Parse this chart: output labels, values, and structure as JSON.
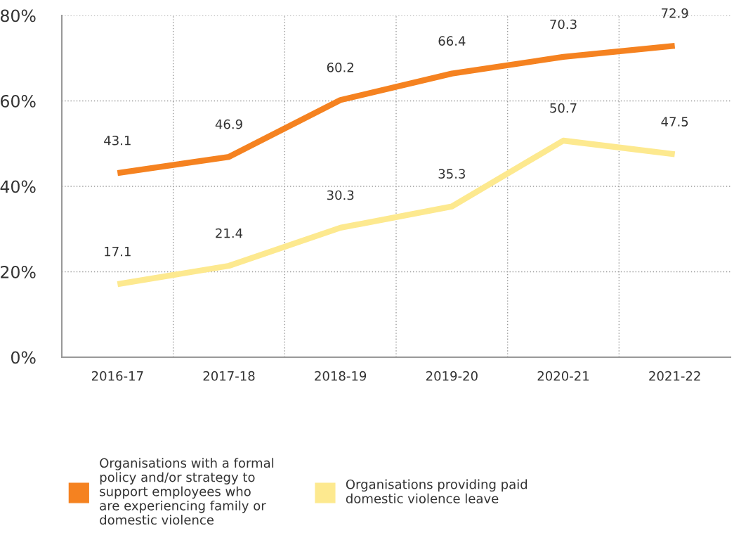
{
  "chart_data": {
    "type": "line",
    "categories": [
      "2016-17",
      "2017-18",
      "2018-19",
      "2019-20",
      "2020-21",
      "2021-22"
    ],
    "series": [
      {
        "name": "Organisations with a formal\npolicy and/or strategy to\nsupport employees who\nare experiencing family or\ndomestic violence",
        "color": "#f58220",
        "values": [
          43.1,
          46.9,
          60.2,
          66.4,
          70.3,
          72.9
        ]
      },
      {
        "name": "Organisations providing paid\ndomestic violence leave",
        "color": "#fde98f",
        "values": [
          17.1,
          21.4,
          30.3,
          35.3,
          50.7,
          47.5
        ]
      }
    ],
    "ylim": [
      0,
      80
    ],
    "yticks": [
      {
        "value": 0,
        "label": "0%"
      },
      {
        "value": 20,
        "label": "20%"
      },
      {
        "value": 40,
        "label": "40%"
      },
      {
        "value": 60,
        "label": "60%"
      },
      {
        "value": 80,
        "label": "80%"
      }
    ],
    "grid": true,
    "legend": "bottom left",
    "data_labels": true,
    "marker": "none",
    "line_style": "solid"
  }
}
